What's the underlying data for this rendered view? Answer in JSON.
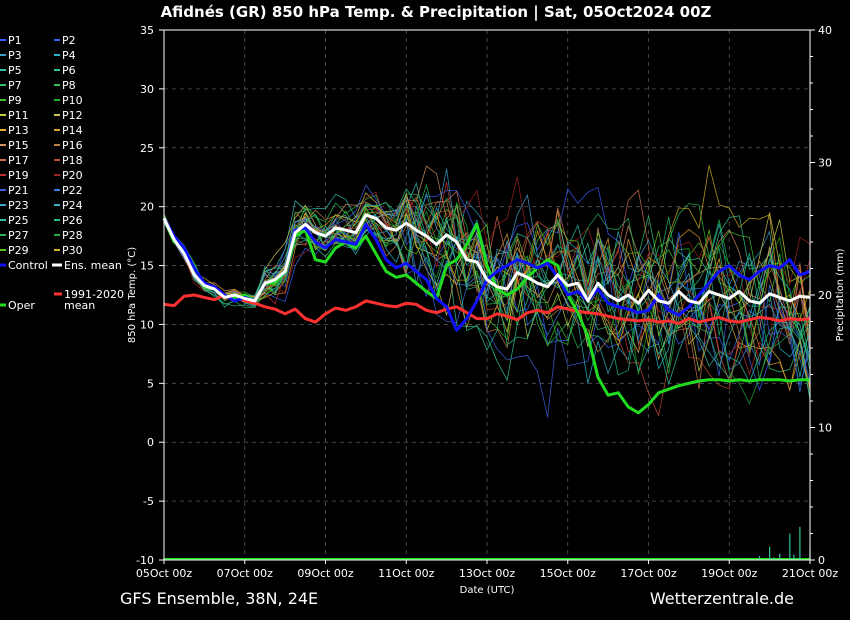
{
  "chart_data": {
    "type": "line",
    "title": "Afidnés  (GR)  850 hPa Temp. & Precipitation | Sat, 05Oct2024 00Z",
    "ylabel": "850 hPa Temp. (°C)",
    "y2label": "Precipitation (mm)",
    "xlabel": "Date (UTC)",
    "footer_left": "GFS Ensemble, 38N, 24E",
    "footer_right": "Wetterzentrale.de",
    "ylim": [
      -10,
      35
    ],
    "y2lim": [
      0,
      40
    ],
    "yticks": [
      "-10",
      "-5",
      "0",
      "5",
      "10",
      "15",
      "20",
      "25",
      "30",
      "35"
    ],
    "y2ticks": [
      "0",
      "10",
      "20",
      "30",
      "40"
    ],
    "xticks": [
      "05Oct 00z",
      "07Oct 00z",
      "09Oct 00z",
      "11Oct 00z",
      "13Oct 00z",
      "15Oct 00z",
      "17Oct 00z",
      "19Oct 00z",
      "21Oct 00z"
    ],
    "grid": true,
    "legend_placement": "left",
    "legend": [
      {
        "label": "P1",
        "color": "#3b5bff"
      },
      {
        "label": "P2",
        "color": "#2f66ff"
      },
      {
        "label": "P3",
        "color": "#3aa0c8"
      },
      {
        "label": "P4",
        "color": "#2bb5c8"
      },
      {
        "label": "P5",
        "color": "#33c0b0"
      },
      {
        "label": "P6",
        "color": "#2fc890"
      },
      {
        "label": "P7",
        "color": "#30c070"
      },
      {
        "label": "P8",
        "color": "#28c050"
      },
      {
        "label": "P9",
        "color": "#40c030"
      },
      {
        "label": "P10",
        "color": "#20b020"
      },
      {
        "label": "P11",
        "color": "#c8d040"
      },
      {
        "label": "P12",
        "color": "#d0c050"
      },
      {
        "label": "P13",
        "color": "#e0b030"
      },
      {
        "label": "P14",
        "color": "#e09830"
      },
      {
        "label": "P15",
        "color": "#d09060"
      },
      {
        "label": "P16",
        "color": "#c08040"
      },
      {
        "label": "P17",
        "color": "#d07050"
      },
      {
        "label": "P18",
        "color": "#c05030"
      },
      {
        "label": "P19",
        "color": "#c03030"
      },
      {
        "label": "P20",
        "color": "#a02020"
      },
      {
        "label": "P21",
        "color": "#4060e0"
      },
      {
        "label": "P22",
        "color": "#3080e0"
      },
      {
        "label": "P23",
        "color": "#40a0d0"
      },
      {
        "label": "P24",
        "color": "#30b0c0"
      },
      {
        "label": "P25",
        "color": "#30c0a0"
      },
      {
        "label": "P26",
        "color": "#20c080"
      },
      {
        "label": "P27",
        "color": "#30b060"
      },
      {
        "label": "P28",
        "color": "#20a840"
      },
      {
        "label": "P29",
        "color": "#60c020"
      },
      {
        "label": "P30",
        "color": "#d0b020"
      },
      {
        "label": "Control",
        "color": "#1010ff"
      },
      {
        "label": "Ens. mean",
        "color": "#ffffff"
      },
      {
        "label": "1991-2020 mean",
        "color": "#ff3030"
      },
      {
        "label": "Oper",
        "color": "#20dd20"
      }
    ],
    "x_days": [
      0,
      0.25,
      0.5,
      0.75,
      1,
      1.25,
      1.5,
      1.75,
      2,
      2.25,
      2.5,
      2.75,
      3,
      3.25,
      3.5,
      3.75,
      4,
      4.25,
      4.5,
      4.75,
      5,
      5.25,
      5.5,
      5.75,
      6,
      6.25,
      6.5,
      6.75,
      7,
      7.25,
      7.5,
      7.75,
      8,
      8.25,
      8.5,
      8.75,
      9,
      9.25,
      9.5,
      9.75,
      10,
      10.25,
      10.5,
      10.75,
      11,
      11.25,
      11.5,
      11.75,
      12,
      12.25,
      12.5,
      12.75,
      13,
      13.25,
      13.5,
      13.75,
      14,
      14.25,
      14.5,
      14.75,
      15,
      15.25,
      15.5,
      15.75,
      16
    ],
    "series": [
      {
        "name": "Ens. mean",
        "color": "#ffffff",
        "width": 3,
        "values": [
          19.0,
          17.2,
          16.0,
          14.2,
          13.3,
          13.0,
          12.3,
          12.5,
          12.2,
          12.0,
          13.5,
          13.8,
          14.5,
          17.8,
          18.5,
          17.8,
          17.5,
          18.2,
          18.0,
          17.8,
          19.3,
          19.0,
          18.2,
          18.0,
          18.6,
          18.0,
          17.5,
          16.8,
          17.6,
          17.0,
          15.5,
          15.3,
          13.8,
          13.2,
          13.0,
          14.4,
          14.0,
          13.5,
          13.2,
          14.2,
          13.3,
          13.5,
          12.0,
          13.5,
          12.5,
          12.0,
          12.5,
          11.8,
          12.9,
          12.0,
          11.8,
          12.8,
          12.0,
          11.8,
          12.8,
          12.5,
          12.2,
          12.8,
          12.0,
          11.8,
          12.6,
          12.3,
          12.0,
          12.4,
          12.3
        ]
      },
      {
        "name": "Control",
        "color": "#1010ff",
        "width": 3,
        "values": [
          19.0,
          17.5,
          16.5,
          14.8,
          13.5,
          13.2,
          12.5,
          12.0,
          12.3,
          12.0,
          13.5,
          13.8,
          14.5,
          18.0,
          18.2,
          17.0,
          16.5,
          17.2,
          17.0,
          16.8,
          18.5,
          17.2,
          15.5,
          14.8,
          15.2,
          14.5,
          13.8,
          12.2,
          11.5,
          9.5,
          10.5,
          12.0,
          13.8,
          14.5,
          15.0,
          15.5,
          15.2,
          14.8,
          15.2,
          14.0,
          12.5,
          12.8,
          12.0,
          13.0,
          11.8,
          11.5,
          11.3,
          11.0,
          11.2,
          12.5,
          11.2,
          10.8,
          11.5,
          12.5,
          13.5,
          14.5,
          15.0,
          14.2,
          13.8,
          14.5,
          15.0,
          14.8,
          15.5,
          14.2,
          14.5
        ]
      },
      {
        "name": "Oper",
        "color": "#20dd20",
        "width": 3,
        "values": [
          19.0,
          17.0,
          16.5,
          15.0,
          13.2,
          13.0,
          12.5,
          12.3,
          12.5,
          12.0,
          13.5,
          13.5,
          14.5,
          17.5,
          18.0,
          15.5,
          15.3,
          16.5,
          17.0,
          16.5,
          17.5,
          16.0,
          14.5,
          14.0,
          14.2,
          13.5,
          12.8,
          12.2,
          15.0,
          15.5,
          16.8,
          18.5,
          15.0,
          13.0,
          12.5,
          13.0,
          14.0,
          14.8,
          15.5,
          15.0,
          12.5,
          11.0,
          9.0,
          5.5,
          4.0,
          4.2,
          3.0,
          2.5,
          3.2,
          4.2,
          4.5,
          4.8,
          5.0,
          5.2,
          5.3,
          5.3,
          5.2,
          5.3,
          5.2,
          5.3,
          5.3,
          5.3,
          5.2,
          5.3,
          5.3
        ]
      },
      {
        "name": "1991-2020 mean",
        "color": "#ff3030",
        "width": 3,
        "values": [
          11.7,
          11.6,
          12.4,
          12.5,
          12.3,
          12.1,
          12.5,
          12.4,
          12.0,
          11.8,
          11.5,
          11.3,
          10.9,
          11.3,
          10.5,
          10.2,
          10.9,
          11.4,
          11.2,
          11.5,
          12.0,
          11.8,
          11.6,
          11.5,
          11.8,
          11.7,
          11.2,
          11.0,
          11.3,
          11.5,
          11.0,
          10.5,
          10.5,
          10.9,
          10.7,
          10.4,
          11.0,
          11.2,
          11.0,
          11.5,
          11.3,
          11.1,
          11.0,
          10.9,
          10.7,
          10.5,
          10.4,
          10.3,
          10.4,
          10.2,
          10.3,
          10.1,
          10.5,
          10.2,
          10.4,
          10.6,
          10.3,
          10.2,
          10.4,
          10.6,
          10.5,
          10.3,
          10.5,
          10.4,
          10.5
        ]
      }
    ],
    "precip_days": [
      14.5,
      14.75,
      15,
      15.1,
      15.25,
      15.5,
      15.6,
      15.75,
      16
    ],
    "precip_values": [
      0.1,
      0.3,
      1.0,
      0.2,
      0.5,
      2.0,
      0.4,
      2.5,
      0.8
    ]
  }
}
